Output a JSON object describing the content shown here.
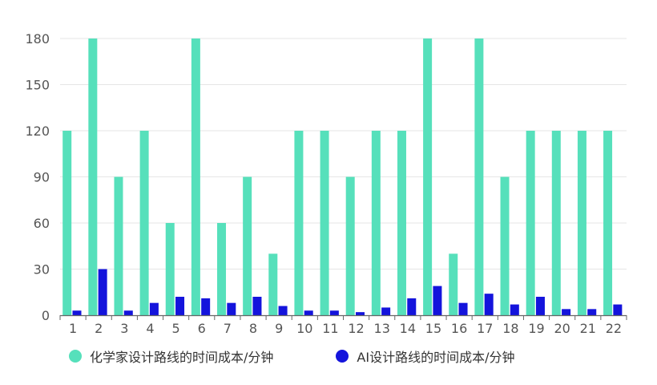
{
  "chart_data": {
    "type": "bar",
    "categories": [
      "1",
      "2",
      "3",
      "4",
      "5",
      "6",
      "7",
      "8",
      "9",
      "10",
      "11",
      "12",
      "13",
      "14",
      "15",
      "16",
      "17",
      "18",
      "19",
      "20",
      "21",
      "22"
    ],
    "series": [
      {
        "name": "化学家设计路线的时间成本/分钟",
        "color": "#56e0bb",
        "values": [
          120,
          180,
          90,
          120,
          60,
          180,
          60,
          90,
          40,
          120,
          120,
          90,
          120,
          120,
          180,
          40,
          180,
          90,
          120,
          120,
          120,
          120
        ]
      },
      {
        "name": "AI设计路线的时间成本/分钟",
        "color": "#1414dc",
        "values": [
          3,
          30,
          3,
          8,
          12,
          11,
          8,
          12,
          6,
          3,
          3,
          2,
          5,
          11,
          19,
          8,
          14,
          7,
          12,
          4,
          4,
          7
        ]
      }
    ],
    "ylim": [
      0,
      180
    ],
    "yticks": [
      "0",
      "30",
      "60",
      "90",
      "120",
      "150",
      "180"
    ],
    "grid": true,
    "legend_position": "bottom-left"
  }
}
